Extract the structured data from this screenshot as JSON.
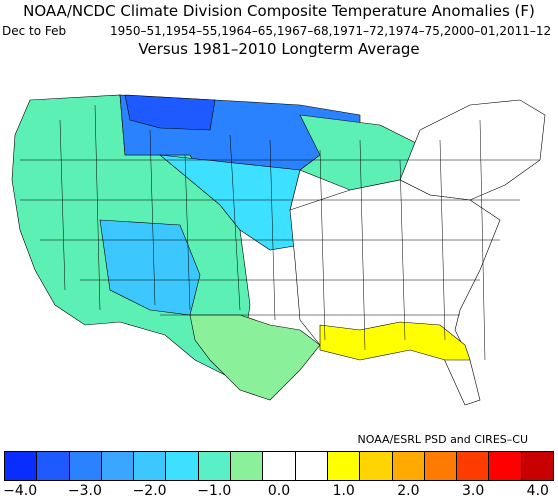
{
  "title": "NOAA/NCDC Climate Division Composite Temperature Anomalies (F)",
  "period": "Dec to Feb",
  "years": "1950–51,1954–55,1964–65,1967–68,1971–72,1974–75,2000–01,2011–12",
  "baseline": "Versus 1981–2010 Longterm Average",
  "credit": "NOAA/ESRL PSD and CIRES–CU",
  "legend": {
    "colors": [
      "#0a2dff",
      "#1e5aff",
      "#2b82ff",
      "#3aa6ff",
      "#3cc8ff",
      "#3ee0ff",
      "#59f0c8",
      "#8af09a",
      "#ffffff",
      "#ffffff",
      "#ffff00",
      "#ffd400",
      "#ffaa00",
      "#ff7a00",
      "#ff3c00",
      "#ff0000",
      "#c80000"
    ],
    "ticks": [
      "−4.0",
      "−3.0",
      "−2.0",
      "−1.0",
      "0.0",
      "1.0",
      "2.0",
      "3.0",
      "4.0"
    ]
  }
}
